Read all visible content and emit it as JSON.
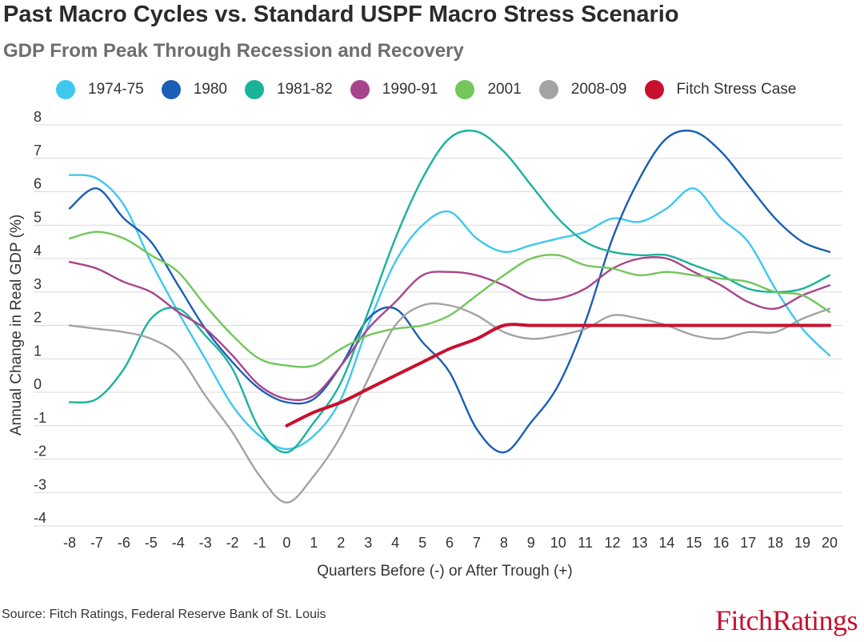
{
  "header": {
    "title": "Past Macro Cycles vs. Standard USPF Macro Stress Scenario",
    "subtitle": "GDP From Peak Through Recession and Recovery"
  },
  "footer": {
    "source": "Source: Fitch Ratings, Federal Reserve Bank of St. Louis",
    "logo": "FitchRatings"
  },
  "chart_data": {
    "type": "line",
    "title": "Past Macro Cycles vs. Standard USPF Macro Stress Scenario",
    "subtitle": "GDP From Peak Through Recession and Recovery",
    "xlabel": "Quarters Before (-) or After Trough (+)",
    "ylabel": "Annual Change in Real GDP (%)",
    "ylim": [
      -4,
      8
    ],
    "yticks": [
      -4,
      -3,
      -2,
      -1,
      0,
      1,
      2,
      3,
      4,
      5,
      6,
      7,
      8
    ],
    "x": [
      -8,
      -7,
      -6,
      -5,
      -4,
      -3,
      -2,
      -1,
      0,
      1,
      2,
      3,
      4,
      5,
      6,
      7,
      8,
      9,
      10,
      11,
      12,
      13,
      14,
      15,
      16,
      17,
      18,
      19,
      20
    ],
    "grid": true,
    "legend_position": "top",
    "series": [
      {
        "name": "1974-75",
        "color": "#3ec8f0",
        "x": [
          -8,
          -7,
          -6,
          -5,
          -4,
          -3,
          -2,
          -1,
          0,
          1,
          2,
          3,
          4,
          5,
          6,
          7,
          8,
          9,
          10,
          11,
          12,
          13,
          14,
          15,
          16,
          17,
          18,
          19,
          20
        ],
        "values": [
          6.5,
          6.4,
          5.6,
          3.9,
          2.4,
          1.0,
          -0.4,
          -1.3,
          -1.7,
          -1.3,
          -0.2,
          2.0,
          3.9,
          5.0,
          5.4,
          4.6,
          4.2,
          4.4,
          4.6,
          4.8,
          5.2,
          5.1,
          5.5,
          6.1,
          5.2,
          4.5,
          3.1,
          1.9,
          1.1
        ]
      },
      {
        "name": "1980",
        "color": "#1a5fb4",
        "x": [
          -8,
          -7,
          -6,
          -5,
          -4,
          -3,
          -2,
          -1,
          0,
          1,
          2,
          3,
          4,
          5,
          6,
          7,
          8,
          9,
          10,
          11,
          12,
          13,
          14,
          15,
          16,
          17,
          18,
          19,
          20
        ],
        "values": [
          5.5,
          6.1,
          5.2,
          4.5,
          3.2,
          1.9,
          0.9,
          0.1,
          -0.3,
          -0.2,
          0.8,
          2.2,
          2.5,
          1.5,
          0.6,
          -1.1,
          -1.8,
          -0.9,
          0.2,
          2.1,
          4.6,
          6.4,
          7.6,
          7.8,
          7.2,
          6.2,
          5.2,
          4.5,
          4.2
        ]
      },
      {
        "name": "1981-82",
        "color": "#19b39a",
        "x": [
          -8,
          -7,
          -6,
          -5,
          -4,
          -3,
          -2,
          -1,
          0,
          1,
          2,
          3,
          4,
          5,
          6,
          7,
          8,
          9,
          10,
          11,
          12,
          13,
          14,
          15,
          16,
          17,
          18,
          19,
          20
        ],
        "values": [
          -0.3,
          -0.2,
          0.7,
          2.2,
          2.5,
          1.7,
          0.7,
          -1.1,
          -1.8,
          -0.9,
          0.3,
          2.4,
          4.6,
          6.4,
          7.6,
          7.8,
          7.2,
          6.2,
          5.2,
          4.5,
          4.2,
          4.1,
          4.1,
          3.8,
          3.5,
          3.1,
          3.0,
          3.1,
          3.5
        ]
      },
      {
        "name": "1990-91",
        "color": "#a8448c",
        "x": [
          -8,
          -7,
          -6,
          -5,
          -4,
          -3,
          -2,
          -1,
          0,
          1,
          2,
          3,
          4,
          5,
          6,
          7,
          8,
          9,
          10,
          11,
          12,
          13,
          14,
          15,
          16,
          17,
          18,
          19,
          20
        ],
        "values": [
          3.9,
          3.7,
          3.3,
          3.0,
          2.4,
          1.9,
          1.1,
          0.2,
          -0.2,
          -0.1,
          0.8,
          1.9,
          2.7,
          3.5,
          3.6,
          3.5,
          3.2,
          2.8,
          2.8,
          3.1,
          3.7,
          4.0,
          4.0,
          3.6,
          3.2,
          2.7,
          2.5,
          2.9,
          3.2
        ]
      },
      {
        "name": "2001",
        "color": "#72c65a",
        "x": [
          -8,
          -7,
          -6,
          -5,
          -4,
          -3,
          -2,
          -1,
          0,
          1,
          2,
          3,
          4,
          5,
          6,
          7,
          8,
          9,
          10,
          11,
          12,
          13,
          14,
          15,
          16,
          17,
          18,
          19,
          20
        ],
        "values": [
          4.6,
          4.8,
          4.6,
          4.1,
          3.6,
          2.6,
          1.7,
          1.0,
          0.8,
          0.8,
          1.3,
          1.7,
          1.9,
          2.0,
          2.3,
          2.9,
          3.5,
          4.0,
          4.1,
          3.8,
          3.7,
          3.5,
          3.6,
          3.5,
          3.4,
          3.3,
          3.0,
          2.9,
          2.4
        ]
      },
      {
        "name": "2008-09",
        "color": "#a3a3a3",
        "x": [
          -8,
          -7,
          -6,
          -5,
          -4,
          -3,
          -2,
          -1,
          0,
          1,
          2,
          3,
          4,
          5,
          6,
          7,
          8,
          9,
          10,
          11,
          12,
          13,
          14,
          15,
          16,
          17,
          18,
          19,
          20
        ],
        "values": [
          2.0,
          1.9,
          1.8,
          1.6,
          1.1,
          -0.1,
          -1.2,
          -2.5,
          -3.3,
          -2.5,
          -1.3,
          0.4,
          2.0,
          2.6,
          2.6,
          2.3,
          1.8,
          1.6,
          1.7,
          1.9,
          2.3,
          2.2,
          2.0,
          1.7,
          1.6,
          1.8,
          1.8,
          2.2,
          2.5
        ]
      },
      {
        "name": "Fitch Stress Case",
        "color": "#c8102e",
        "x": [
          0,
          1,
          2,
          3,
          4,
          5,
          6,
          7,
          8,
          9,
          10,
          11,
          12,
          13,
          14,
          15,
          16,
          17,
          18,
          19,
          20
        ],
        "values": [
          -1.0,
          -0.6,
          -0.3,
          0.1,
          0.5,
          0.9,
          1.3,
          1.6,
          2.0,
          2.0,
          2.0,
          2.0,
          2.0,
          2.0,
          2.0,
          2.0,
          2.0,
          2.0,
          2.0,
          2.0,
          2.0
        ]
      }
    ]
  }
}
